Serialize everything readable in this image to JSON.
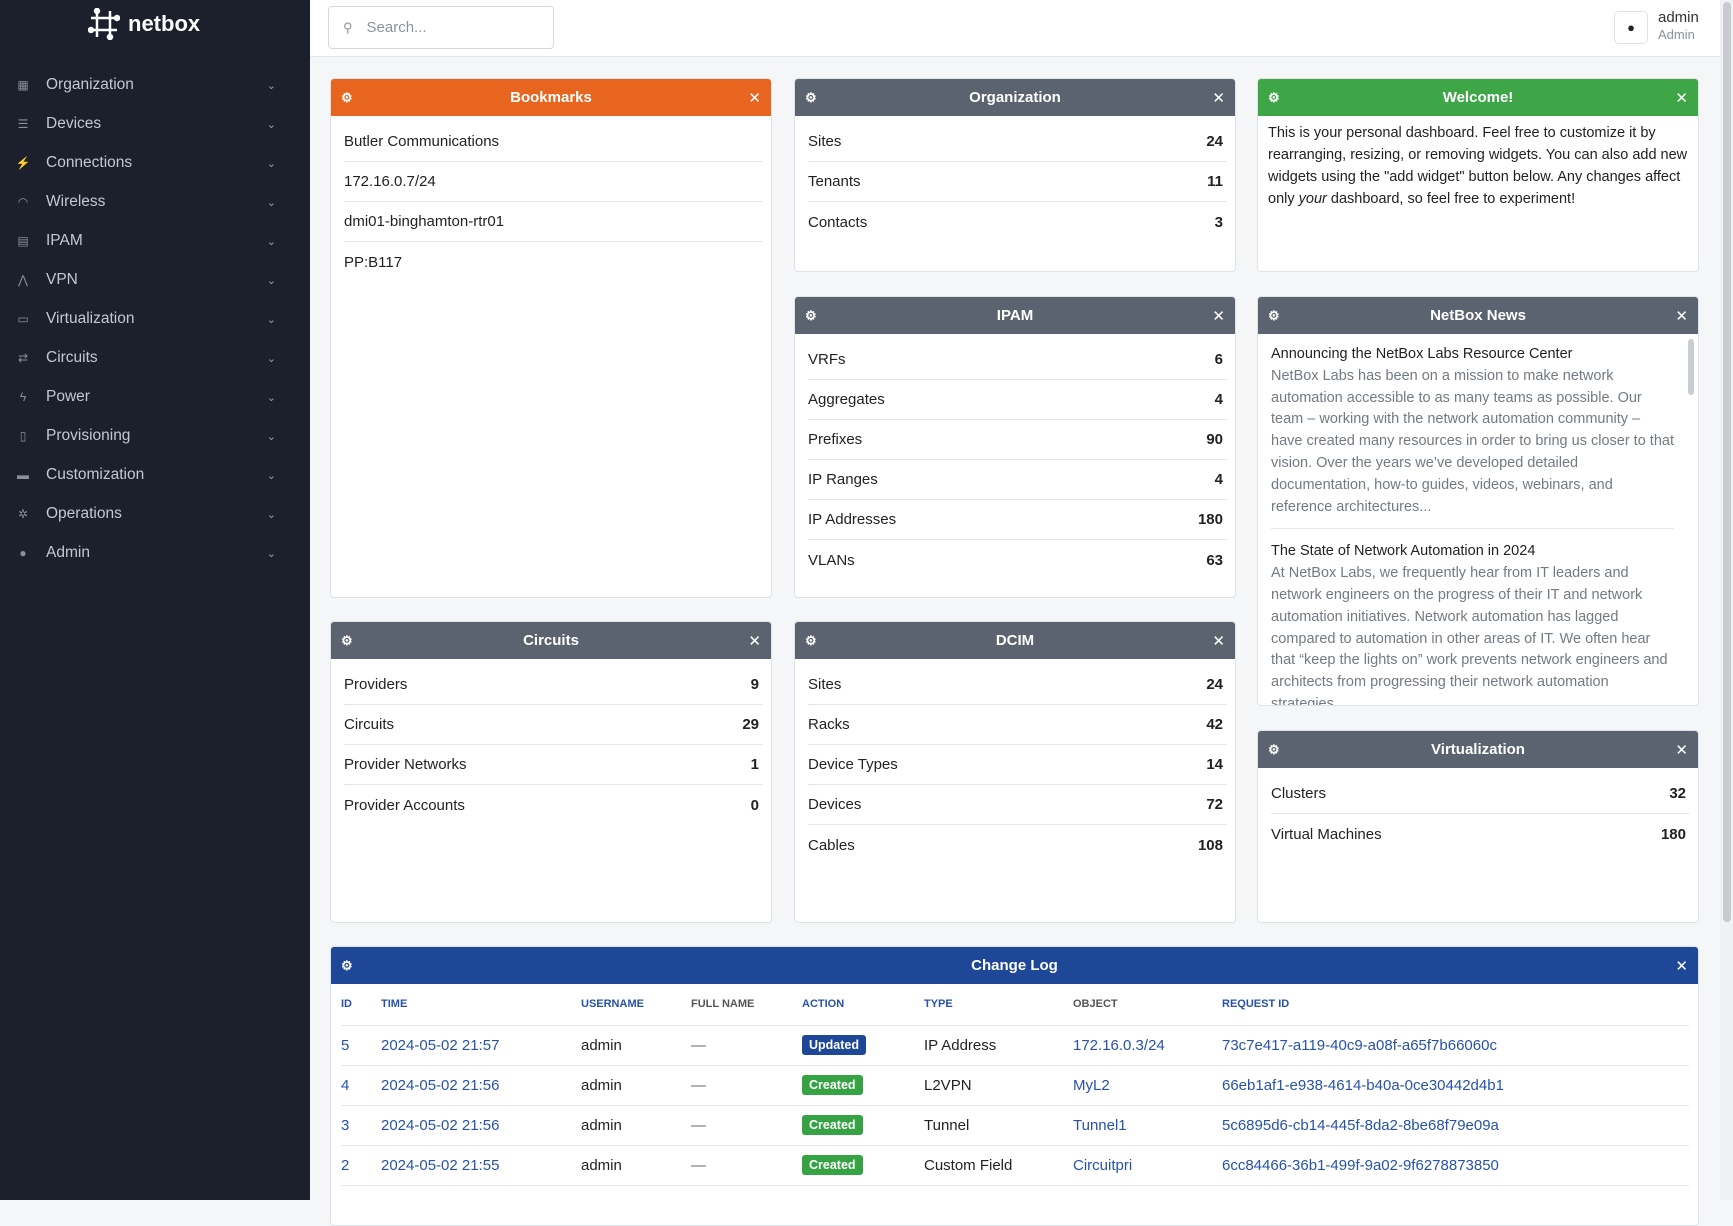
{
  "brand": "netbox",
  "sidebar": {
    "items": [
      {
        "label": "Organization",
        "icon": "building-icon"
      },
      {
        "label": "Devices",
        "icon": "server-icon"
      },
      {
        "label": "Connections",
        "icon": "plug-icon"
      },
      {
        "label": "Wireless",
        "icon": "wifi-icon"
      },
      {
        "label": "IPAM",
        "icon": "counter-icon"
      },
      {
        "label": "VPN",
        "icon": "tunnel-icon"
      },
      {
        "label": "Virtualization",
        "icon": "monitor-icon"
      },
      {
        "label": "Circuits",
        "icon": "transit-icon"
      },
      {
        "label": "Power",
        "icon": "flash-icon"
      },
      {
        "label": "Provisioning",
        "icon": "file-icon"
      },
      {
        "label": "Customization",
        "icon": "toolbox-icon"
      },
      {
        "label": "Operations",
        "icon": "cogs-icon"
      },
      {
        "label": "Admin",
        "icon": "users-icon"
      }
    ]
  },
  "topbar": {
    "search_placeholder": "Search...",
    "user_name": "admin",
    "user_role": "Admin"
  },
  "colors": {
    "orange": "#e8651f",
    "gray": "#5c6370",
    "green": "#3fa648",
    "blue": "#1e4798"
  },
  "widgets": {
    "bookmarks": {
      "title": "Bookmarks",
      "items": [
        "Butler Communications",
        "172.16.0.7/24",
        "dmi01-binghamton-rtr01",
        "PP:B117"
      ]
    },
    "organization": {
      "title": "Organization",
      "rows": [
        {
          "label": "Sites",
          "value": "24"
        },
        {
          "label": "Tenants",
          "value": "11"
        },
        {
          "label": "Contacts",
          "value": "3"
        }
      ]
    },
    "welcome": {
      "title": "Welcome!",
      "text1": "This is your personal dashboard. Feel free to customize it by rearranging, resizing, or removing widgets. You can also add new widgets using the \"add widget\" button below. Any changes affect only ",
      "em": "your",
      "text2": " dashboard, so feel free to experiment!"
    },
    "ipam": {
      "title": "IPAM",
      "rows": [
        {
          "label": "VRFs",
          "value": "6"
        },
        {
          "label": "Aggregates",
          "value": "4"
        },
        {
          "label": "Prefixes",
          "value": "90"
        },
        {
          "label": "IP Ranges",
          "value": "4"
        },
        {
          "label": "IP Addresses",
          "value": "180"
        },
        {
          "label": "VLANs",
          "value": "63"
        }
      ]
    },
    "news": {
      "title": "NetBox News",
      "items": [
        {
          "title": "Announcing the NetBox Labs Resource Center",
          "body": "NetBox Labs has been on a mission to make network automation accessible to as many teams as possible. Our team – working with the network automation community – have created many resources in order to bring us closer to that vision. Over the years we’ve developed detailed documentation, how-to guides, videos, webinars, and reference architectures..."
        },
        {
          "title": "The State of Network Automation in 2024",
          "body": "At NetBox Labs, we frequently hear from IT leaders and network engineers on the progress of their IT and network automation initiatives. Network automation has lagged compared to automation in other areas of IT. We often hear that “keep the lights on” work prevents network engineers and architects from progressing their network automation strategies."
        }
      ]
    },
    "circuits": {
      "title": "Circuits",
      "rows": [
        {
          "label": "Providers",
          "value": "9"
        },
        {
          "label": "Circuits",
          "value": "29"
        },
        {
          "label": "Provider Networks",
          "value": "1"
        },
        {
          "label": "Provider Accounts",
          "value": "0"
        }
      ]
    },
    "dcim": {
      "title": "DCIM",
      "rows": [
        {
          "label": "Sites",
          "value": "24"
        },
        {
          "label": "Racks",
          "value": "42"
        },
        {
          "label": "Device Types",
          "value": "14"
        },
        {
          "label": "Devices",
          "value": "72"
        },
        {
          "label": "Cables",
          "value": "108"
        }
      ]
    },
    "virtualization": {
      "title": "Virtualization",
      "rows": [
        {
          "label": "Clusters",
          "value": "32"
        },
        {
          "label": "Virtual Machines",
          "value": "180"
        }
      ]
    },
    "changelog": {
      "title": "Change Log",
      "columns": [
        "ID",
        "TIME",
        "USERNAME",
        "FULL NAME",
        "ACTION",
        "TYPE",
        "OBJECT",
        "REQUEST ID"
      ],
      "rows": [
        {
          "id": "5",
          "time": "2024-05-02 21:57",
          "username": "admin",
          "full_name": "—",
          "action": "Updated",
          "type": "IP Address",
          "object": "172.16.0.3/24",
          "request_id": "73c7e417-a119-40c9-a08f-a65f7b66060c"
        },
        {
          "id": "4",
          "time": "2024-05-02 21:56",
          "username": "admin",
          "full_name": "—",
          "action": "Created",
          "type": "L2VPN",
          "object": "MyL2",
          "request_id": "66eb1af1-e938-4614-b40a-0ce30442d4b1"
        },
        {
          "id": "3",
          "time": "2024-05-02 21:56",
          "username": "admin",
          "full_name": "—",
          "action": "Created",
          "type": "Tunnel",
          "object": "Tunnel1",
          "request_id": "5c6895d6-cb14-445f-8da2-8be68f79e09a"
        },
        {
          "id": "2",
          "time": "2024-05-02 21:55",
          "username": "admin",
          "full_name": "—",
          "action": "Created",
          "type": "Custom Field",
          "object": "Circuitpri",
          "request_id": "6cc84466-36b1-499f-9a02-9f6278873850"
        }
      ]
    }
  }
}
